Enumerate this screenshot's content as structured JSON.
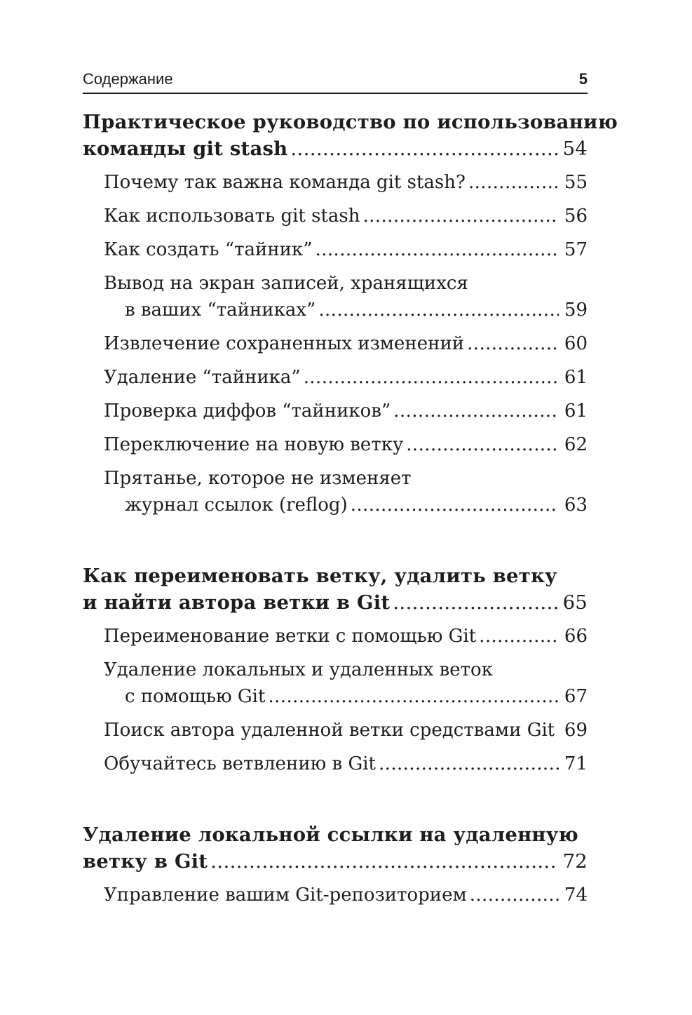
{
  "colors": {
    "text": "#1d1d1b",
    "background": "#ffffff",
    "rule": "#1c1c1c"
  },
  "header": {
    "title": "Содержание",
    "page_number": "5"
  },
  "sections": [
    {
      "heading_lines": [
        "Практическое руководство по использованию",
        "команды git stash"
      ],
      "page": "54",
      "entries": [
        {
          "lines": [
            "Почему так важна команда git stash?"
          ],
          "page": "55"
        },
        {
          "lines": [
            "Как использовать git stash"
          ],
          "page": "56"
        },
        {
          "lines": [
            "Как создать “тайник”"
          ],
          "page": "57"
        },
        {
          "lines": [
            "Вывод на экран записей, хранящихся",
            "в ваших “тайниках”"
          ],
          "page": "59"
        },
        {
          "lines": [
            "Извлечение сохраненных изменений"
          ],
          "page": "60"
        },
        {
          "lines": [
            "Удаление “тайника”"
          ],
          "page": "61"
        },
        {
          "lines": [
            "Проверка диффов “тайников”"
          ],
          "page": "61"
        },
        {
          "lines": [
            "Переключение на новую ветку"
          ],
          "page": "62"
        },
        {
          "lines": [
            "Прятанье, которое не изменяет",
            "журнал ссылок (reflog)"
          ],
          "page": "63"
        }
      ]
    },
    {
      "heading_lines": [
        "Как переименовать ветку, удалить ветку",
        "и найти автора ветки в Git"
      ],
      "page": "65",
      "entries": [
        {
          "lines": [
            "Переименование ветки с помощью Git"
          ],
          "page": "66"
        },
        {
          "lines": [
            "Удаление локальных и удаленных веток",
            "с помощью Git"
          ],
          "page": "67"
        },
        {
          "lines": [
            "Поиск автора удаленной ветки средствами Git"
          ],
          "page": "69"
        },
        {
          "lines": [
            "Обучайтесь ветвлению в Git"
          ],
          "page": "71"
        }
      ]
    },
    {
      "heading_lines": [
        "Удаление локальной ссылки на удаленную",
        "ветку в Git"
      ],
      "page": "72",
      "entries": [
        {
          "lines": [
            "Управление вашим Git-репозиторием"
          ],
          "page": "74"
        }
      ]
    }
  ]
}
